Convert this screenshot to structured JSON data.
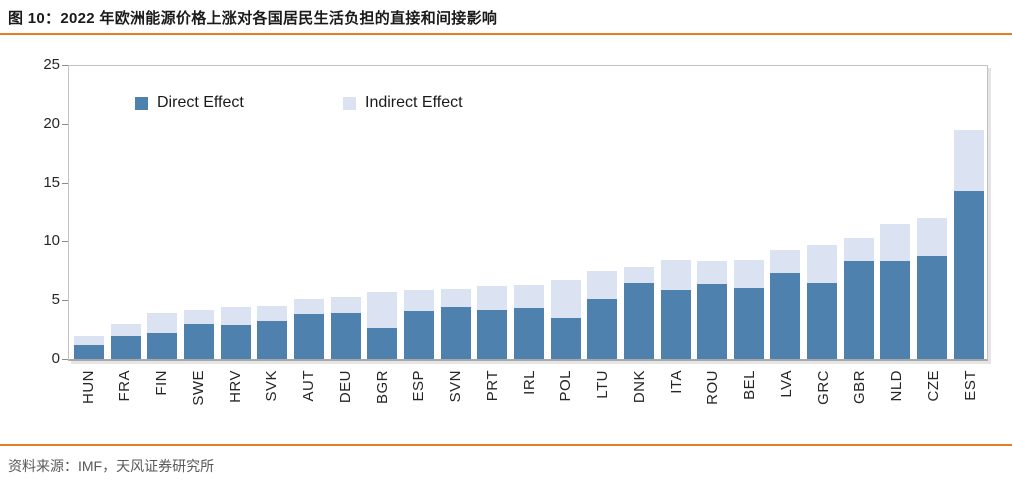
{
  "title": "图 10：2022 年欧洲能源价格上涨对各国居民生活负担的直接和间接影响",
  "source": "资料来源：IMF，天风证券研究所",
  "legend": {
    "direct_label": "Direct Effect",
    "indirect_label": "Indirect Effect"
  },
  "colors": {
    "direct": "#4E81AD",
    "indirect": "#DBE3F2",
    "accent_orange": "#E87D23"
  },
  "chart_data": {
    "type": "bar",
    "stacked": true,
    "title": "图 10：2022 年欧洲能源价格上涨对各国居民生活负担的直接和间接影响",
    "xlabel": "",
    "ylabel": "",
    "ylim": [
      0,
      25
    ],
    "yticks": [
      0,
      5,
      10,
      15,
      20,
      25
    ],
    "grid": false,
    "legend_position": "top-left-inside",
    "categories": [
      "HUN",
      "FRA",
      "FIN",
      "SWE",
      "HRV",
      "SVK",
      "AUT",
      "DEU",
      "BGR",
      "ESP",
      "SVN",
      "PRT",
      "IRL",
      "POL",
      "LTU",
      "DNK",
      "ITA",
      "ROU",
      "BEL",
      "LVA",
      "GRC",
      "GBR",
      "NLD",
      "CZE",
      "EST"
    ],
    "series": [
      {
        "name": "Direct Effect",
        "values": [
          1.2,
          2.0,
          2.2,
          3.0,
          2.9,
          3.2,
          3.8,
          3.9,
          2.6,
          4.1,
          4.4,
          4.2,
          4.3,
          3.5,
          5.1,
          6.5,
          5.9,
          6.4,
          6.0,
          7.3,
          6.5,
          8.3,
          8.3,
          8.8,
          14.3
        ]
      },
      {
        "name": "Indirect Effect",
        "values": [
          0.8,
          1.0,
          1.7,
          1.2,
          1.5,
          1.3,
          1.3,
          1.4,
          3.1,
          1.8,
          1.6,
          2.0,
          2.0,
          3.2,
          2.4,
          1.3,
          2.5,
          1.9,
          2.4,
          2.0,
          3.2,
          2.0,
          3.2,
          3.2,
          5.2
        ]
      }
    ]
  }
}
